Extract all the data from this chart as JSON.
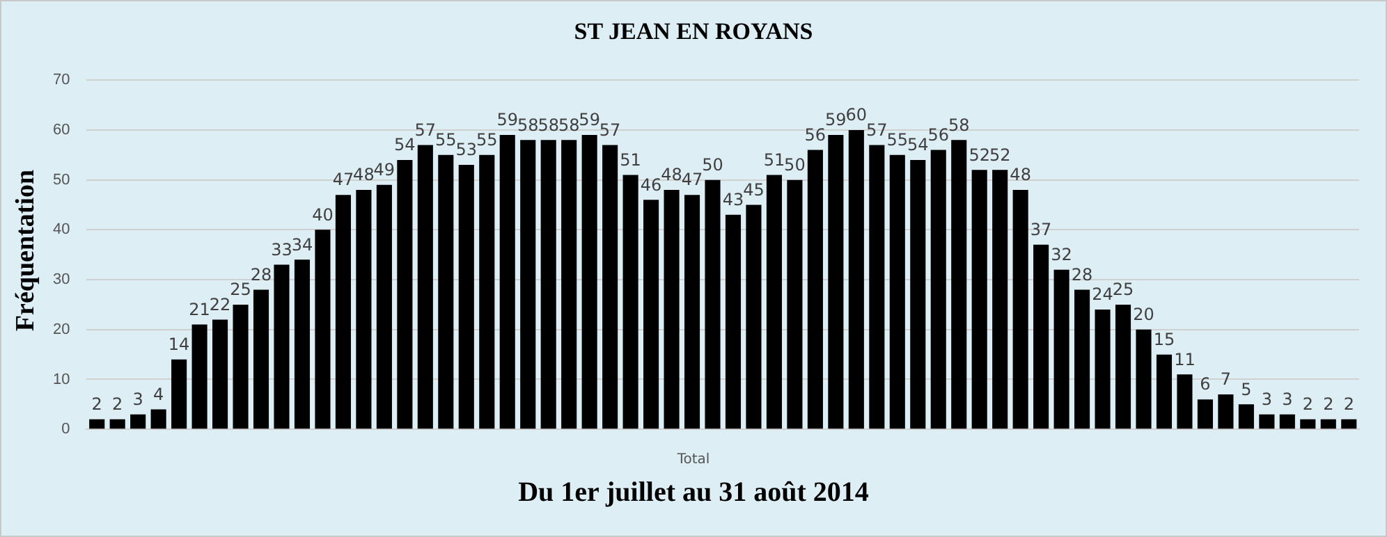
{
  "chart_data": {
    "type": "bar",
    "title": "ST JEAN EN ROYANS",
    "xlabel": "Du 1er juillet au 31 août 2014",
    "ylabel": "Fréquentation",
    "annotations": [
      "Total"
    ],
    "categories": [
      null,
      null,
      null,
      null,
      null,
      null,
      null,
      null,
      null,
      null,
      null,
      null,
      null,
      null,
      null,
      null,
      null,
      null,
      null,
      null,
      null,
      null,
      null,
      null,
      null,
      null,
      null,
      null,
      null,
      null,
      null,
      null,
      null,
      null,
      null,
      null,
      null,
      null,
      null,
      null,
      null,
      null,
      null,
      null,
      null,
      null,
      null,
      null,
      null,
      null,
      null,
      null,
      null,
      null,
      null,
      null,
      null,
      null,
      null,
      null,
      null,
      null
    ],
    "values": [
      2,
      2,
      3,
      4,
      14,
      21,
      22,
      25,
      28,
      33,
      34,
      40,
      47,
      48,
      49,
      54,
      57,
      55,
      53,
      55,
      59,
      58,
      58,
      58,
      59,
      57,
      51,
      46,
      48,
      47,
      50,
      43,
      45,
      51,
      50,
      56,
      59,
      60,
      57,
      55,
      54,
      56,
      58,
      52,
      52,
      48,
      37,
      32,
      28,
      24,
      25,
      20,
      15,
      11,
      6,
      7,
      5,
      3,
      3,
      2,
      2,
      2
    ],
    "color": "#000000",
    "ylim": [
      0,
      70
    ],
    "yticks": [
      0,
      10,
      20,
      30,
      40,
      50,
      60,
      70
    ],
    "grid": "y",
    "data_labels": true,
    "legend": false
  }
}
